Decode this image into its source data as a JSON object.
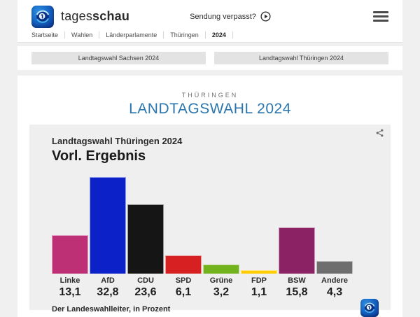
{
  "header": {
    "brand_regular": "tages",
    "brand_bold": "schau",
    "sendung_verpasst_label": "Sendung verpasst?",
    "breadcrumb": [
      "Startseite",
      "Wahlen",
      "Länderparlamente",
      "Thüringen",
      "2024"
    ]
  },
  "election_nav": {
    "buttons": [
      {
        "label": "Landtagswahl Sachsen 2024"
      },
      {
        "label": "Landtagswahl Thüringen 2024"
      }
    ]
  },
  "page_header": {
    "region": "THÜRINGEN",
    "title": "LANDTAGSWAHL 2024"
  },
  "chart_card": {
    "subtitle": "Landtagswahl Thüringen 2024",
    "title": "Vorl. Ergebnis",
    "source": "Der Landeswahlleiter, in Prozent"
  },
  "chart_data": {
    "type": "bar",
    "title": "Vorl. Ergebnis",
    "subtitle": "Landtagswahl Thüringen 2024",
    "unit": "Prozent",
    "source": "Der Landeswahlleiter, in Prozent",
    "categories": [
      "Linke",
      "AfD",
      "CDU",
      "SPD",
      "Grüne",
      "FDP",
      "BSW",
      "Andere"
    ],
    "values": [
      13.1,
      32.8,
      23.6,
      6.1,
      3.2,
      1.1,
      15.8,
      4.3
    ],
    "value_labels": [
      "13,1",
      "32,8",
      "23,6",
      "6,1",
      "3,2",
      "1,1",
      "15,8",
      "4,3"
    ],
    "colors": [
      "#be3075",
      "#0d21c8",
      "#151515",
      "#d62021",
      "#72b21c",
      "#ffcc00",
      "#8a2264",
      "#6e6e6e"
    ],
    "ylim": [
      0,
      35
    ],
    "grid": false,
    "legend": false
  },
  "colors": {
    "accent_blue": "#2a75ae",
    "page_bg": "#f0f0f0",
    "card_bg": "#efefef",
    "button_bg": "#e3e3e3"
  }
}
